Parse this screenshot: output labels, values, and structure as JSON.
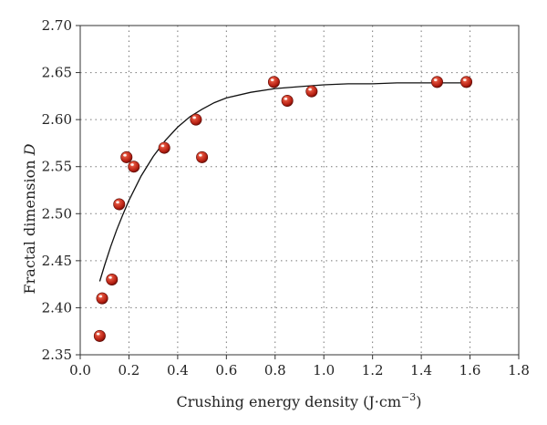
{
  "chart_data": {
    "type": "scatter",
    "xlabel": "Crushing energy density (J·cm",
    "xlabel_sup": "−3",
    "xlabel_close": ")",
    "ylabel": "Fractal dimension ",
    "ylabel_var": "D",
    "xlim": [
      0.0,
      1.8
    ],
    "ylim": [
      2.35,
      2.7
    ],
    "xticks": [
      0.0,
      0.2,
      0.4,
      0.6,
      0.8,
      1.0,
      1.2,
      1.4,
      1.6,
      1.8
    ],
    "yticks": [
      2.35,
      2.4,
      2.45,
      2.5,
      2.55,
      2.6,
      2.65,
      2.7
    ],
    "xtick_labels": [
      "0.0",
      "0.2",
      "0.4",
      "0.6",
      "0.8",
      "1.0",
      "1.2",
      "1.4",
      "1.6",
      "1.8"
    ],
    "ytick_labels": [
      "2.35",
      "2.40",
      "2.45",
      "2.50",
      "2.55",
      "2.60",
      "2.65",
      "2.70"
    ],
    "grid": true,
    "marker_color": "#c0281c",
    "points": [
      {
        "x": 0.08,
        "y": 2.37
      },
      {
        "x": 0.09,
        "y": 2.41
      },
      {
        "x": 0.13,
        "y": 2.43
      },
      {
        "x": 0.16,
        "y": 2.51
      },
      {
        "x": 0.19,
        "y": 2.56
      },
      {
        "x": 0.22,
        "y": 2.55
      },
      {
        "x": 0.345,
        "y": 2.57
      },
      {
        "x": 0.475,
        "y": 2.6
      },
      {
        "x": 0.5,
        "y": 2.56
      },
      {
        "x": 0.795,
        "y": 2.64
      },
      {
        "x": 0.85,
        "y": 2.62
      },
      {
        "x": 0.95,
        "y": 2.63
      },
      {
        "x": 1.465,
        "y": 2.64
      },
      {
        "x": 1.585,
        "y": 2.64
      }
    ],
    "fit_curve": {
      "x": [
        0.08,
        0.1,
        0.125,
        0.15,
        0.175,
        0.2,
        0.25,
        0.3,
        0.35,
        0.4,
        0.45,
        0.5,
        0.55,
        0.6,
        0.7,
        0.8,
        0.9,
        1.0,
        1.1,
        1.2,
        1.3,
        1.4,
        1.5,
        1.6
      ],
      "y": [
        2.428,
        2.445,
        2.465,
        2.483,
        2.499,
        2.514,
        2.54,
        2.561,
        2.578,
        2.592,
        2.603,
        2.611,
        2.618,
        2.623,
        2.629,
        2.633,
        2.635,
        2.637,
        2.638,
        2.638,
        2.639,
        2.639,
        2.639,
        2.639
      ]
    }
  }
}
